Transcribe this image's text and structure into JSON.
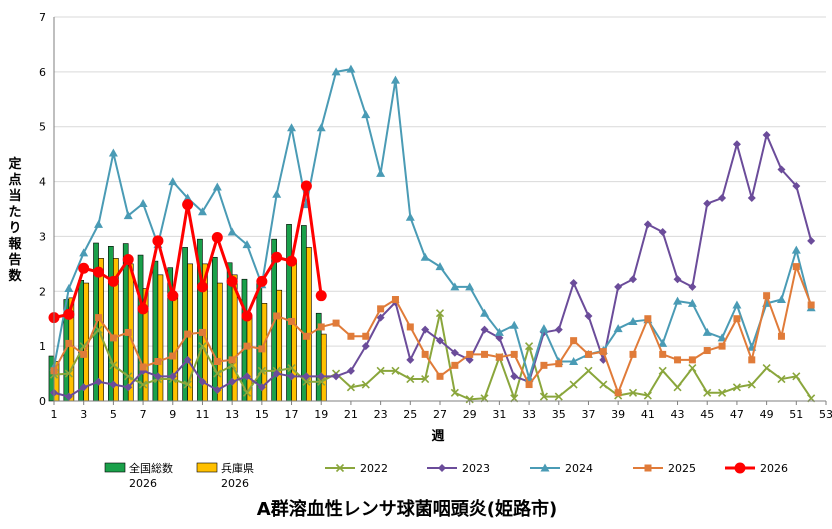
{
  "chart_data": {
    "type": "bar",
    "title": "A群溶血性レンサ球菌咽頭炎(姫路市)",
    "xlabel": "週",
    "ylabel": "定点当たり報告数",
    "ylim": [
      0,
      7
    ],
    "yticks": [
      0,
      1,
      2,
      3,
      4,
      5,
      6,
      7
    ],
    "xlim": [
      1,
      53
    ],
    "xticks": [
      1,
      3,
      5,
      7,
      9,
      11,
      13,
      15,
      17,
      19,
      21,
      23,
      25,
      27,
      29,
      31,
      33,
      35,
      37,
      39,
      41,
      43,
      45,
      47,
      49,
      51,
      53
    ],
    "grid": "horizontal",
    "legend_position": "bottom",
    "bar_series": [
      {
        "name": "全国総数\n2026",
        "label_line1": "全国総数",
        "label_line2": "2026",
        "color": "#1aa04a",
        "x": [
          1,
          2,
          3,
          4,
          5,
          6,
          7,
          8,
          9,
          10,
          11,
          12,
          13,
          14,
          15,
          16,
          17,
          18,
          19
        ],
        "values": [
          0.82,
          1.85,
          2.2,
          2.88,
          2.82,
          2.87,
          2.66,
          2.55,
          2.43,
          2.8,
          2.95,
          2.62,
          2.52,
          2.22,
          2.2,
          2.95,
          3.22,
          3.2,
          1.6
        ]
      },
      {
        "name": "兵庫県\n2026",
        "label_line1": "兵庫県",
        "label_line2": "2026",
        "color": "#ffc000",
        "x": [
          1,
          2,
          3,
          4,
          5,
          6,
          7,
          8,
          9,
          10,
          11,
          12,
          13,
          14,
          15,
          16,
          17,
          18,
          19
        ],
        "values": [
          0.72,
          1.88,
          2.15,
          2.6,
          2.6,
          2.5,
          2.05,
          2.3,
          1.95,
          2.5,
          2.5,
          2.15,
          2.3,
          1.55,
          1.78,
          2.02,
          2.53,
          2.8,
          1.22
        ]
      }
    ],
    "line_series": [
      {
        "name": "2022",
        "color": "#8aa63c",
        "marker": "x",
        "x": [
          1,
          2,
          3,
          4,
          5,
          6,
          7,
          8,
          9,
          10,
          11,
          12,
          13,
          14,
          15,
          16,
          17,
          18,
          19,
          20,
          21,
          22,
          23,
          24,
          25,
          26,
          27,
          28,
          29,
          30,
          31,
          32,
          33,
          34,
          35,
          36,
          37,
          38,
          39,
          40,
          41,
          42,
          43,
          44,
          45,
          46,
          47,
          48,
          49,
          50,
          51,
          52
        ],
        "values": [
          0.48,
          0.5,
          1.0,
          1.3,
          0.65,
          0.45,
          0.3,
          0.4,
          0.4,
          0.3,
          1.0,
          0.5,
          0.65,
          0.15,
          0.55,
          0.55,
          0.6,
          0.35,
          0.35,
          0.5,
          0.25,
          0.3,
          0.55,
          0.55,
          0.4,
          0.4,
          1.6,
          0.15,
          0.03,
          0.05,
          0.8,
          0.05,
          1.0,
          0.08,
          0.08,
          0.3,
          0.55,
          0.3,
          0.1,
          0.15,
          0.1,
          0.55,
          0.25,
          0.6,
          0.15,
          0.15,
          0.25,
          0.3,
          0.6,
          0.4,
          0.45,
          0.05
        ]
      },
      {
        "name": "2023",
        "color": "#6b4c9a",
        "marker": "diamond",
        "x": [
          1,
          2,
          3,
          4,
          5,
          6,
          7,
          8,
          9,
          10,
          11,
          12,
          13,
          14,
          15,
          16,
          17,
          18,
          19,
          20,
          21,
          22,
          23,
          24,
          25,
          26,
          27,
          28,
          29,
          30,
          31,
          32,
          33,
          34,
          35,
          36,
          37,
          38,
          39,
          40,
          41,
          42,
          43,
          44,
          45,
          46,
          47,
          48,
          49,
          50,
          51,
          52
        ],
        "values": [
          0.15,
          0.08,
          0.25,
          0.35,
          0.3,
          0.25,
          0.55,
          0.45,
          0.45,
          0.75,
          0.35,
          0.2,
          0.35,
          0.45,
          0.25,
          0.5,
          0.45,
          0.45,
          0.45,
          0.45,
          0.55,
          1.0,
          1.52,
          1.8,
          0.75,
          1.3,
          1.1,
          0.88,
          0.75,
          1.3,
          1.15,
          0.45,
          0.35,
          1.25,
          1.3,
          2.15,
          1.55,
          0.75,
          2.08,
          2.22,
          3.22,
          3.08,
          2.22,
          2.08,
          3.6,
          3.7,
          4.68,
          3.7,
          4.85,
          4.22,
          3.92,
          2.92
        ]
      },
      {
        "name": "2024",
        "color": "#4a9bb5",
        "marker": "triangle",
        "x": [
          1,
          2,
          3,
          4,
          5,
          6,
          7,
          8,
          9,
          10,
          11,
          12,
          13,
          14,
          15,
          16,
          17,
          18,
          19,
          20,
          21,
          22,
          23,
          24,
          25,
          26,
          27,
          28,
          29,
          30,
          31,
          32,
          33,
          34,
          35,
          36,
          37,
          38,
          39,
          40,
          41,
          42,
          43,
          44,
          45,
          46,
          47,
          48,
          49,
          50,
          51,
          52
        ],
        "values": [
          0.62,
          2.05,
          2.7,
          3.22,
          4.52,
          3.38,
          3.6,
          2.85,
          4.0,
          3.7,
          3.45,
          3.9,
          3.08,
          2.85,
          2.12,
          3.77,
          4.98,
          3.58,
          4.98,
          6.0,
          6.05,
          5.22,
          4.15,
          5.85,
          3.35,
          2.62,
          2.45,
          2.08,
          2.08,
          1.6,
          1.25,
          1.38,
          0.42,
          1.32,
          0.72,
          0.72,
          0.85,
          0.92,
          1.32,
          1.45,
          1.48,
          1.05,
          1.82,
          1.78,
          1.25,
          1.15,
          1.75,
          0.98,
          1.78,
          1.85,
          2.75,
          1.7
        ]
      },
      {
        "name": "2025",
        "color": "#e07b39",
        "marker": "square",
        "x": [
          1,
          2,
          3,
          4,
          5,
          6,
          7,
          8,
          9,
          10,
          11,
          12,
          13,
          14,
          15,
          16,
          17,
          18,
          19,
          20,
          21,
          22,
          23,
          24,
          25,
          26,
          27,
          28,
          29,
          30,
          31,
          32,
          33,
          34,
          35,
          36,
          37,
          38,
          39,
          40,
          41,
          42,
          43,
          44,
          45,
          46,
          47,
          48,
          49,
          50,
          51,
          52
        ],
        "values": [
          0.55,
          1.05,
          0.85,
          1.52,
          1.15,
          1.25,
          0.62,
          0.72,
          0.82,
          1.22,
          1.25,
          0.72,
          0.75,
          1.0,
          0.95,
          1.55,
          1.45,
          1.18,
          1.35,
          1.42,
          1.18,
          1.18,
          1.68,
          1.85,
          1.35,
          0.85,
          0.45,
          0.65,
          0.85,
          0.85,
          0.8,
          0.85,
          0.3,
          0.65,
          0.68,
          1.1,
          0.85,
          0.9,
          0.15,
          0.85,
          1.5,
          0.85,
          0.75,
          0.75,
          0.92,
          1.0,
          1.5,
          0.75,
          1.92,
          1.18,
          2.45,
          1.75
        ]
      },
      {
        "name": "2026",
        "color": "#ff0000",
        "marker": "circle",
        "bold": true,
        "x": [
          1,
          2,
          3,
          4,
          5,
          6,
          7,
          8,
          9,
          10,
          11,
          12,
          13,
          14,
          15,
          16,
          17,
          18,
          19
        ],
        "values": [
          1.52,
          1.58,
          2.42,
          2.35,
          2.18,
          2.58,
          1.68,
          2.92,
          1.92,
          3.58,
          2.08,
          2.98,
          2.18,
          1.55,
          2.18,
          2.62,
          2.55,
          3.92,
          1.92
        ]
      }
    ]
  }
}
